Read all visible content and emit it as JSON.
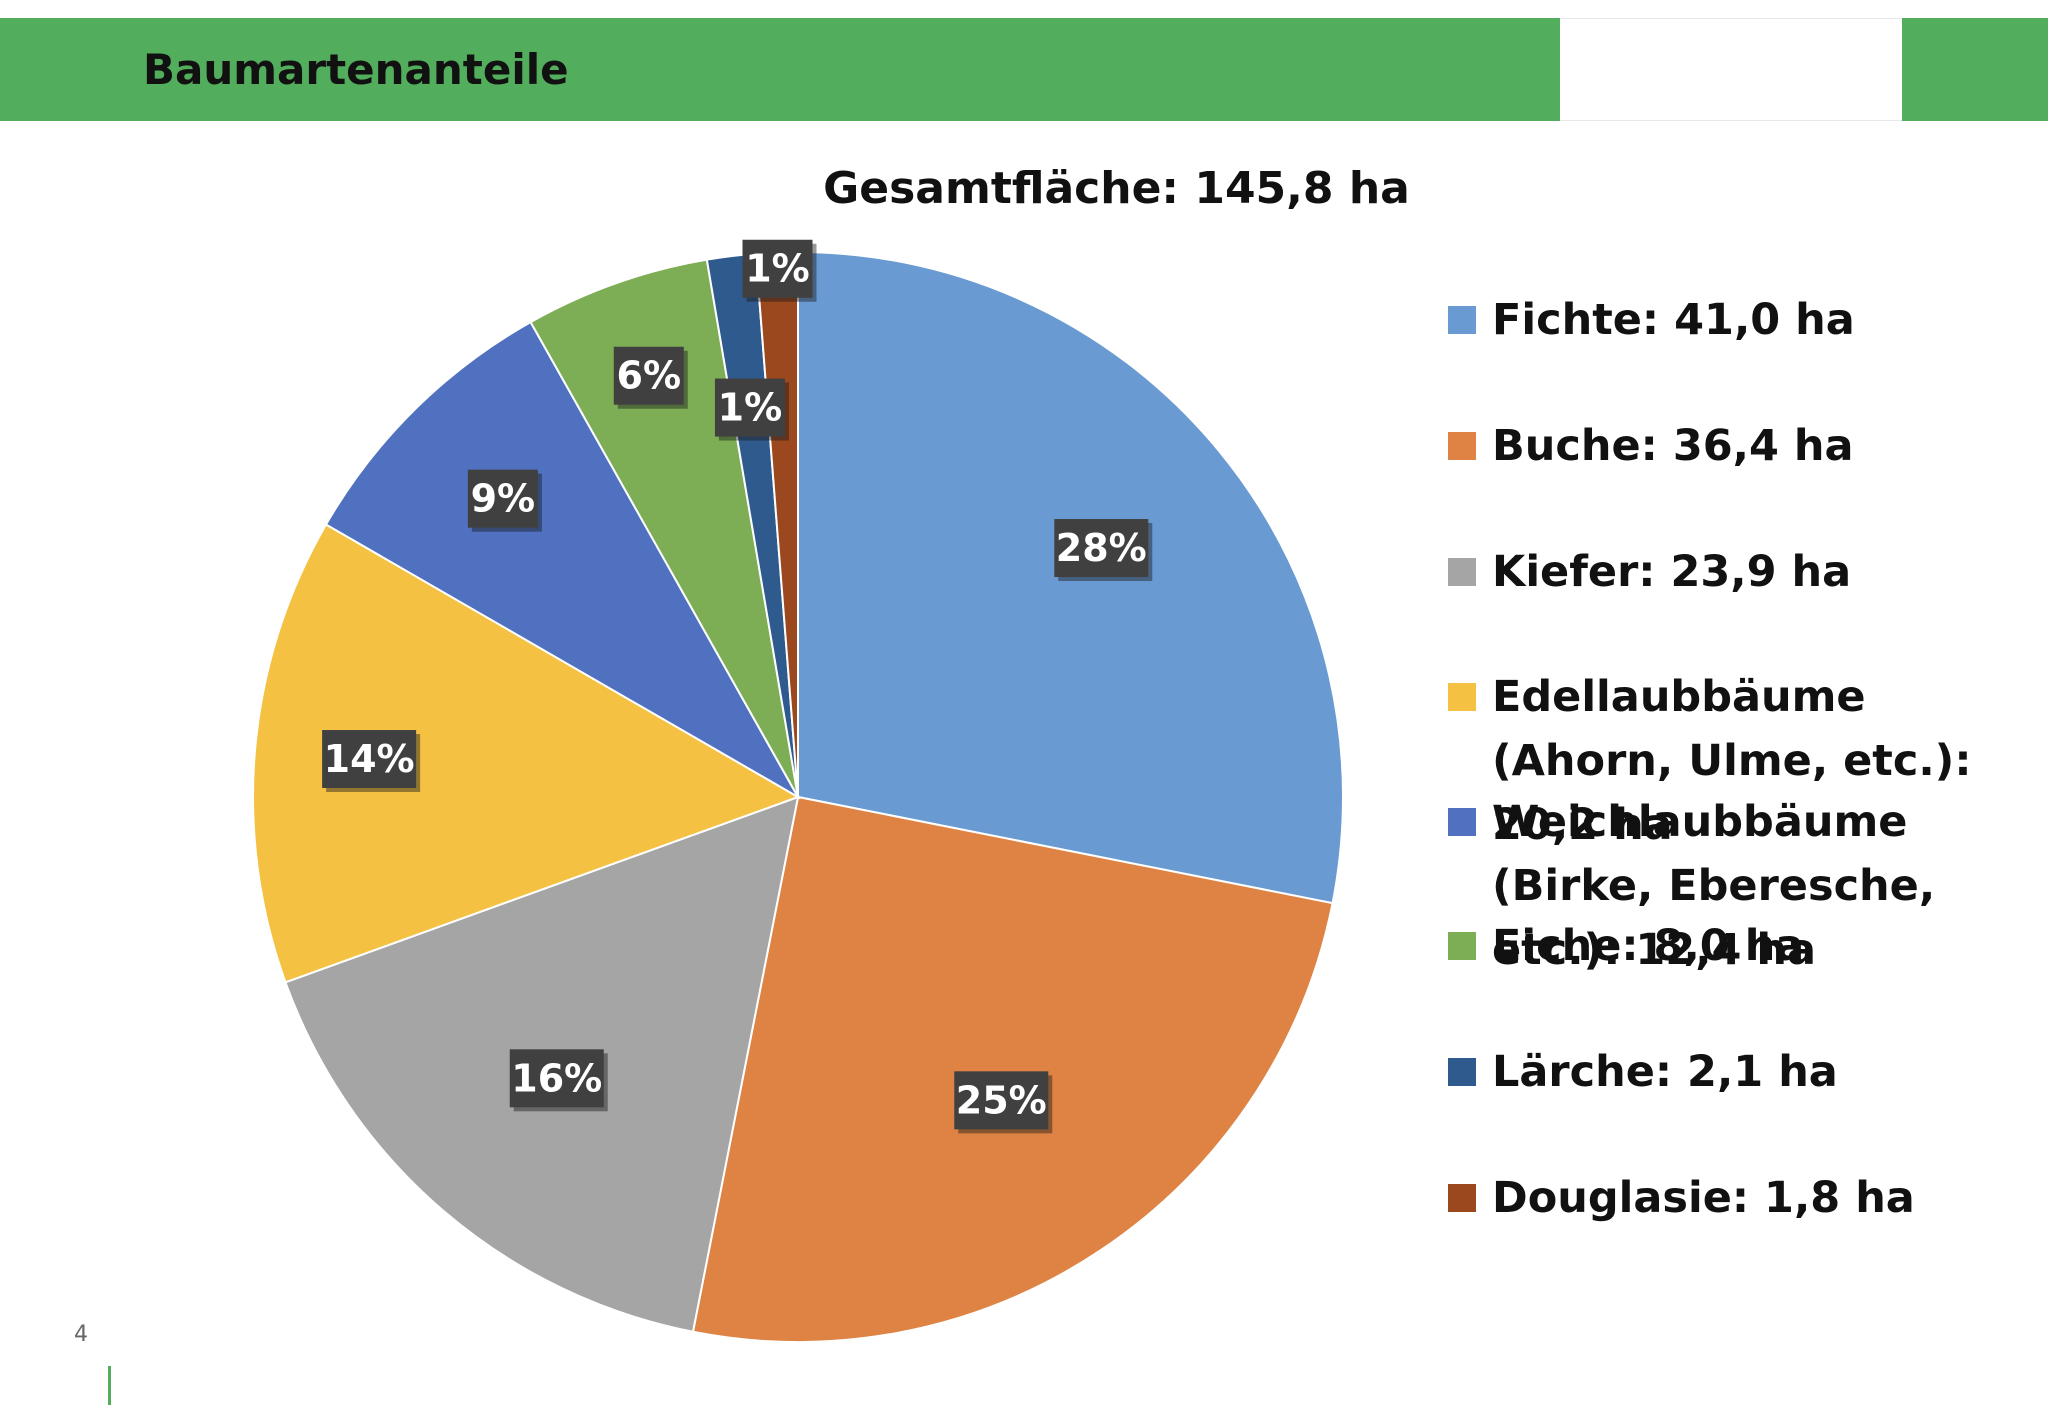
{
  "header": {
    "title": "Baumartenanteile"
  },
  "slide_number": "4",
  "colors": {
    "header_green": "#52AE5C",
    "label_bg": "#404040"
  },
  "chart_data": {
    "type": "pie",
    "title": "Gesamtfläche: 145,8 ha",
    "legend_position": "right",
    "slices": [
      {
        "name": "Fichte",
        "value": 41.0,
        "unit": "ha",
        "percent_label": "28%",
        "color": "#6A9AD2",
        "legend": "Fichte: 41,0 ha"
      },
      {
        "name": "Buche",
        "value": 36.4,
        "unit": "ha",
        "percent_label": "25%",
        "color": "#DE8343",
        "legend": "Buche: 36,4 ha"
      },
      {
        "name": "Kiefer",
        "value": 23.9,
        "unit": "ha",
        "percent_label": "16%",
        "color": "#A5A5A5",
        "legend": "Kiefer: 23,9 ha"
      },
      {
        "name": "Edellaubbäume",
        "value": 20.2,
        "unit": "ha",
        "percent_label": "14%",
        "color": "#F4C143",
        "legend": "Edellaubbäume (Ahorn, Ulme, etc.): 20,2 ha"
      },
      {
        "name": "Weichlaubbäume",
        "value": 12.4,
        "unit": "ha",
        "percent_label": "9%",
        "color": "#4F71BF",
        "legend": "Weichlaubbäume (Birke, Eberesche, etc.): 12,4 ha"
      },
      {
        "name": "Eiche",
        "value": 8.0,
        "unit": "ha",
        "percent_label": "6%",
        "color": "#7DAD55",
        "legend": "Eiche: 8,0 ha"
      },
      {
        "name": "Lärche",
        "value": 2.1,
        "unit": "ha",
        "percent_label": "1%",
        "color": "#2F5A8E",
        "legend": "Lärche: 2,1 ha"
      },
      {
        "name": "Douglasie",
        "value": 1.8,
        "unit": "ha",
        "percent_label": "1%",
        "color": "#9B481E",
        "legend": "Douglasie: 1,8 ha"
      }
    ]
  }
}
